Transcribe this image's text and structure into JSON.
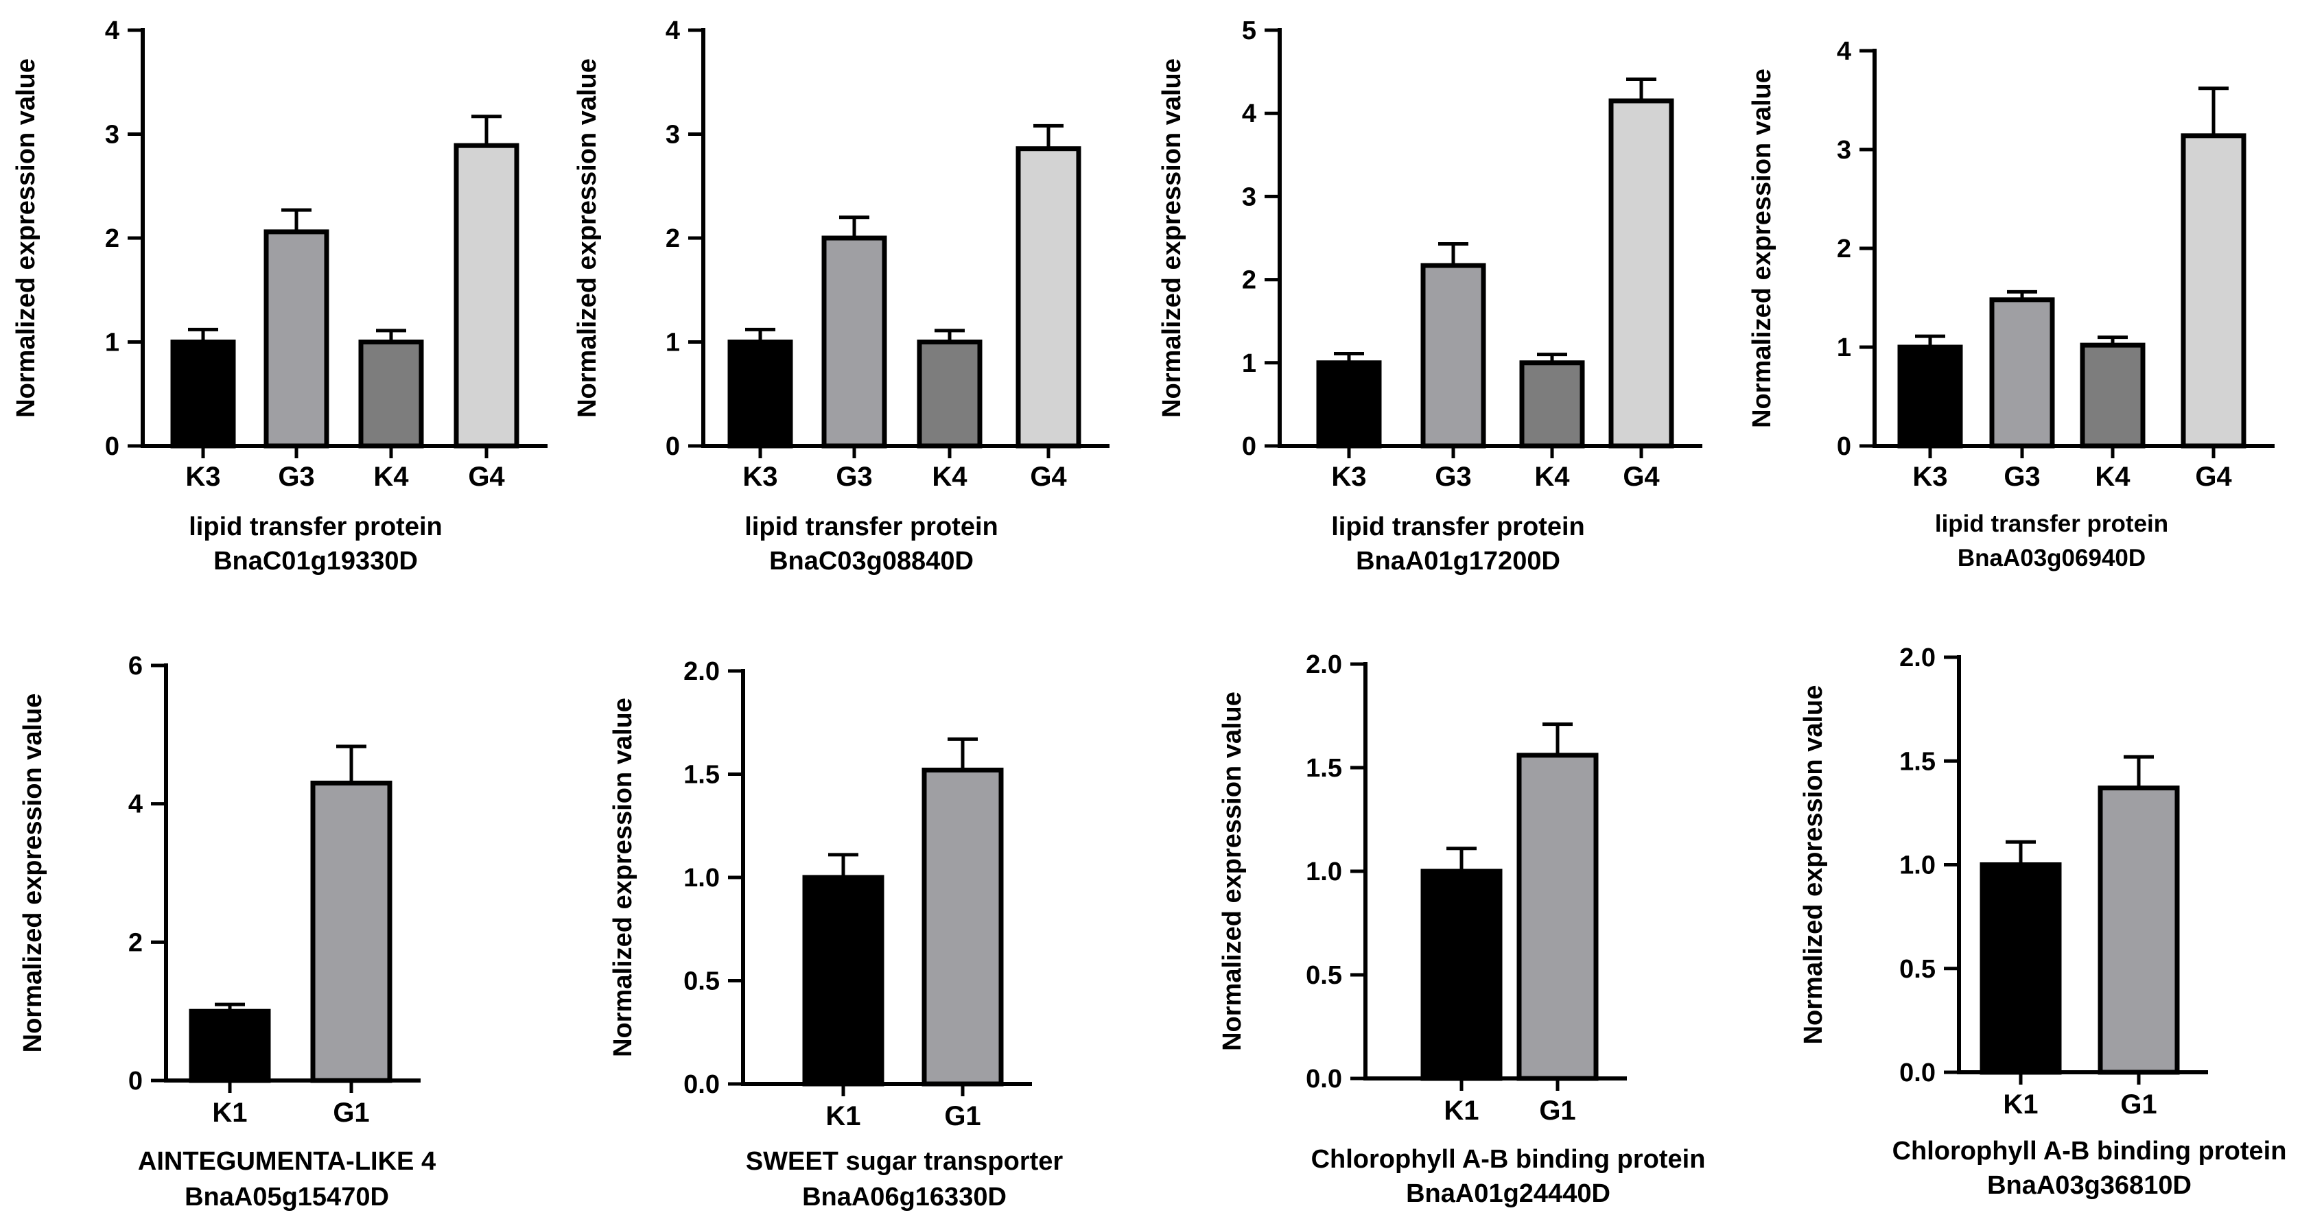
{
  "colors": {
    "K3": "#000000",
    "G3": "#9f9fa3",
    "K4": "#7d7d7d",
    "G4": "#d3d3d3",
    "K1": "#000000",
    "G1": "#9f9fa3",
    "stroke": "#000000"
  },
  "chart_data": [
    {
      "type": "bar",
      "categories": [
        "K3",
        "G3",
        "K4",
        "G4"
      ],
      "values": [
        1.0,
        2.06,
        1.0,
        2.89
      ],
      "errors": [
        0.12,
        0.21,
        0.11,
        0.28
      ],
      "ylabel": "Normalized expression value",
      "ylim": [
        0,
        4
      ],
      "yticks": [
        "0",
        "1",
        "2",
        "3",
        "4"
      ],
      "xlabel": [
        "lipid transfer protein",
        "BnaC01g19330D"
      ]
    },
    {
      "type": "bar",
      "categories": [
        "K3",
        "G3",
        "K4",
        "G4"
      ],
      "values": [
        1.0,
        2.0,
        1.0,
        2.86
      ],
      "errors": [
        0.12,
        0.2,
        0.11,
        0.22
      ],
      "ylabel": "Normalized expression value",
      "ylim": [
        0,
        4
      ],
      "yticks": [
        "0",
        "1",
        "2",
        "3",
        "4"
      ],
      "xlabel": [
        "lipid transfer protein",
        "BnaC03g08840D"
      ]
    },
    {
      "type": "bar",
      "categories": [
        "K3",
        "G3",
        "K4",
        "G4"
      ],
      "values": [
        1.0,
        2.17,
        1.0,
        4.15
      ],
      "errors": [
        0.11,
        0.26,
        0.1,
        0.26
      ],
      "ylabel": "Normalized expression value",
      "ylim": [
        0,
        5
      ],
      "yticks": [
        "0",
        "1",
        "2",
        "3",
        "4",
        "5"
      ],
      "xlabel": [
        "lipid transfer protein",
        "BnaA01g17200D"
      ]
    },
    {
      "type": "bar",
      "categories": [
        "K3",
        "G3",
        "K4",
        "G4"
      ],
      "values": [
        1.0,
        1.48,
        1.02,
        3.14
      ],
      "errors": [
        0.11,
        0.08,
        0.08,
        0.48
      ],
      "ylabel": "Normalized expression value",
      "ylim": [
        0,
        4
      ],
      "yticks": [
        "0",
        "1",
        "2",
        "3",
        "4"
      ],
      "xlabel": [
        "lipid transfer protein",
        "BnaA03g06940D"
      ]
    },
    {
      "type": "bar",
      "categories": [
        "K1",
        "G1"
      ],
      "values": [
        1.0,
        4.3
      ],
      "errors": [
        0.1,
        0.53
      ],
      "ylabel": "Normalized expression value",
      "ylim": [
        0,
        6
      ],
      "yticks": [
        "0",
        "2",
        "4",
        "6"
      ],
      "xlabel": [
        "AINTEGUMENTA-LIKE 4",
        "BnaA05g15470D"
      ]
    },
    {
      "type": "bar",
      "categories": [
        "K1",
        "G1"
      ],
      "values": [
        1.0,
        1.52
      ],
      "errors": [
        0.11,
        0.15
      ],
      "ylabel": "Normalized expression value",
      "ylim": [
        0,
        2
      ],
      "yticks": [
        "0.0",
        "0.5",
        "1.0",
        "1.5",
        "2.0"
      ],
      "xlabel": [
        "SWEET sugar transporter",
        "BnaA06g16330D"
      ]
    },
    {
      "type": "bar",
      "categories": [
        "K1",
        "G1"
      ],
      "values": [
        1.0,
        1.56
      ],
      "errors": [
        0.11,
        0.15
      ],
      "ylabel": "Normalized expression value",
      "ylim": [
        0,
        2
      ],
      "yticks": [
        "0.0",
        "0.5",
        "1.0",
        "1.5",
        "2.0"
      ],
      "xlabel": [
        "Chlorophyll A-B binding protein",
        "BnaA01g24440D"
      ]
    },
    {
      "type": "bar",
      "categories": [
        "K1",
        "G1"
      ],
      "values": [
        1.0,
        1.37
      ],
      "errors": [
        0.11,
        0.15
      ],
      "ylabel": "Normalized expression value",
      "ylim": [
        0,
        2
      ],
      "yticks": [
        "0.0",
        "0.5",
        "1.0",
        "1.5",
        "2.0"
      ],
      "xlabel": [
        "Chlorophyll A-B binding protein",
        "BnaA03g36810D"
      ]
    }
  ]
}
